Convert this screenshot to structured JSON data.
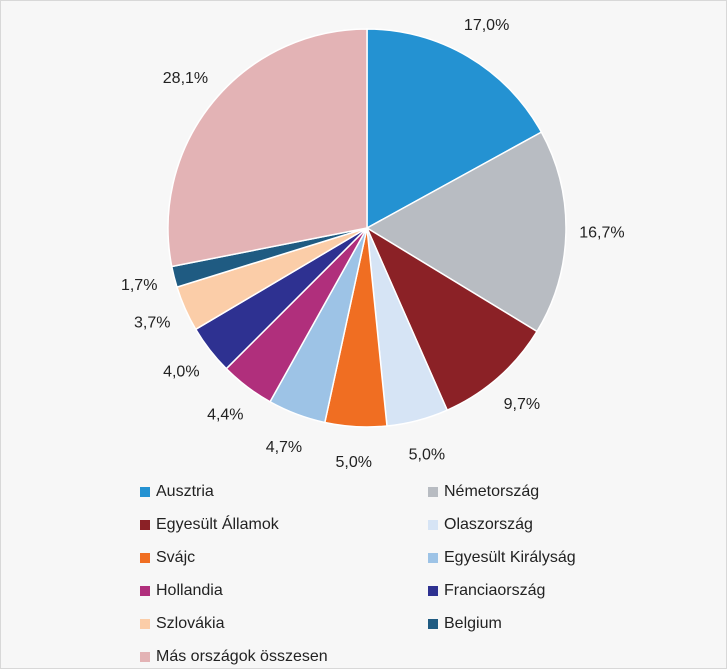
{
  "chart_data": {
    "type": "pie",
    "categories": [
      "Ausztria",
      "Németország",
      "Egyesült Államok",
      "Olaszország",
      "Svájc",
      "Egyesült Királyság",
      "Hollandia",
      "Franciaország",
      "Szlovákia",
      "Belgium",
      "Más országok összesen"
    ],
    "values": [
      17.0,
      16.7,
      9.7,
      5.0,
      5.0,
      4.7,
      4.4,
      4.0,
      3.7,
      1.7,
      28.1
    ],
    "value_labels": [
      "17,0%",
      "16,7%",
      "9,7%",
      "5,0%",
      "5,0%",
      "4,7%",
      "4,4%",
      "4,0%",
      "3,7%",
      "1,7%",
      "28,1%"
    ],
    "colors": [
      "#2492d2",
      "#b8bcc2",
      "#8b2126",
      "#d6e4f5",
      "#f06e22",
      "#9dc3e6",
      "#b02f7c",
      "#2e3191",
      "#fbcda8",
      "#1f5b82",
      "#e3b3b5"
    ]
  }
}
